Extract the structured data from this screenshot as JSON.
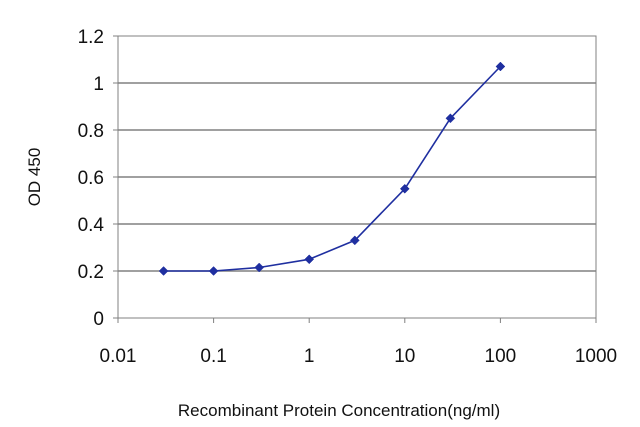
{
  "chart_data": {
    "type": "line",
    "x_scale": "log",
    "xlabel": "Recombinant  Protein Concentration(ng/ml)",
    "ylabel": "OD 450",
    "xlim": [
      0.01,
      1000
    ],
    "ylim": [
      0,
      1.2
    ],
    "x_ticks": [
      0.01,
      0.1,
      1,
      10,
      100,
      1000
    ],
    "x_tick_labels": [
      "0.01",
      "0.1",
      "1",
      "10",
      "100",
      "1000"
    ],
    "y_ticks": [
      0,
      0.2,
      0.4,
      0.6,
      0.8,
      1,
      1.2
    ],
    "y_tick_labels": [
      "0",
      "0.2",
      "0.4",
      "0.6",
      "0.8",
      "1",
      "1.2"
    ],
    "grid": "horizontal",
    "series": [
      {
        "color": "#1f2fa0",
        "marker": "diamond",
        "x": [
          0.03,
          0.1,
          0.3,
          1,
          3,
          10,
          30,
          100
        ],
        "y": [
          0.2,
          0.2,
          0.215,
          0.25,
          0.33,
          0.55,
          0.85,
          1.07
        ]
      }
    ]
  }
}
